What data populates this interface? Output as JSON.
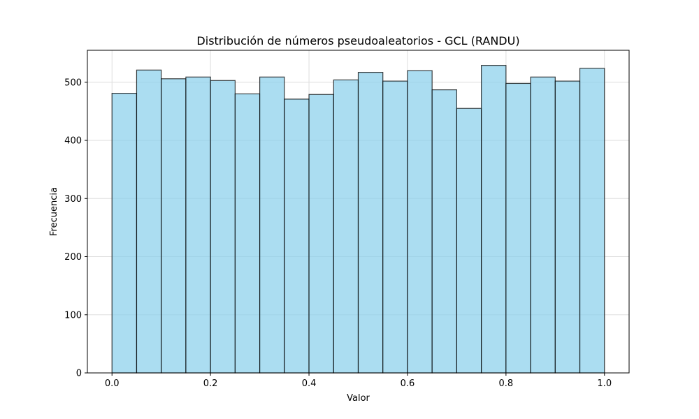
{
  "chart_data": {
    "type": "bar",
    "title": "Distribución de números pseudoaleatorios - GCL (RANDU)",
    "xlabel": "Valor",
    "ylabel": "Frecuencia",
    "xlim": [
      -0.05,
      1.05
    ],
    "ylim": [
      0,
      555
    ],
    "grid": true,
    "bin_edges": [
      0.0,
      0.05,
      0.1,
      0.15,
      0.2,
      0.25,
      0.3,
      0.35,
      0.4,
      0.45,
      0.5,
      0.55,
      0.6,
      0.65,
      0.7,
      0.75,
      0.8,
      0.85,
      0.9,
      0.95,
      1.0
    ],
    "values": [
      481,
      521,
      506,
      509,
      503,
      480,
      509,
      471,
      479,
      504,
      517,
      502,
      520,
      487,
      455,
      529,
      498,
      509,
      502,
      524
    ],
    "xticks": [
      {
        "value": 0.0,
        "label": "0.0"
      },
      {
        "value": 0.2,
        "label": "0.2"
      },
      {
        "value": 0.4,
        "label": "0.4"
      },
      {
        "value": 0.6,
        "label": "0.6"
      },
      {
        "value": 0.8,
        "label": "0.8"
      },
      {
        "value": 1.0,
        "label": "1.0"
      }
    ],
    "yticks": [
      {
        "value": 0,
        "label": "0"
      },
      {
        "value": 100,
        "label": "100"
      },
      {
        "value": 200,
        "label": "200"
      },
      {
        "value": 300,
        "label": "300"
      },
      {
        "value": 400,
        "label": "400"
      },
      {
        "value": 500,
        "label": "500"
      }
    ],
    "colors": {
      "bar_fill": "#87ceeb",
      "bar_edge": "#000000",
      "grid": "#dddddd",
      "axis": "#000000"
    }
  }
}
